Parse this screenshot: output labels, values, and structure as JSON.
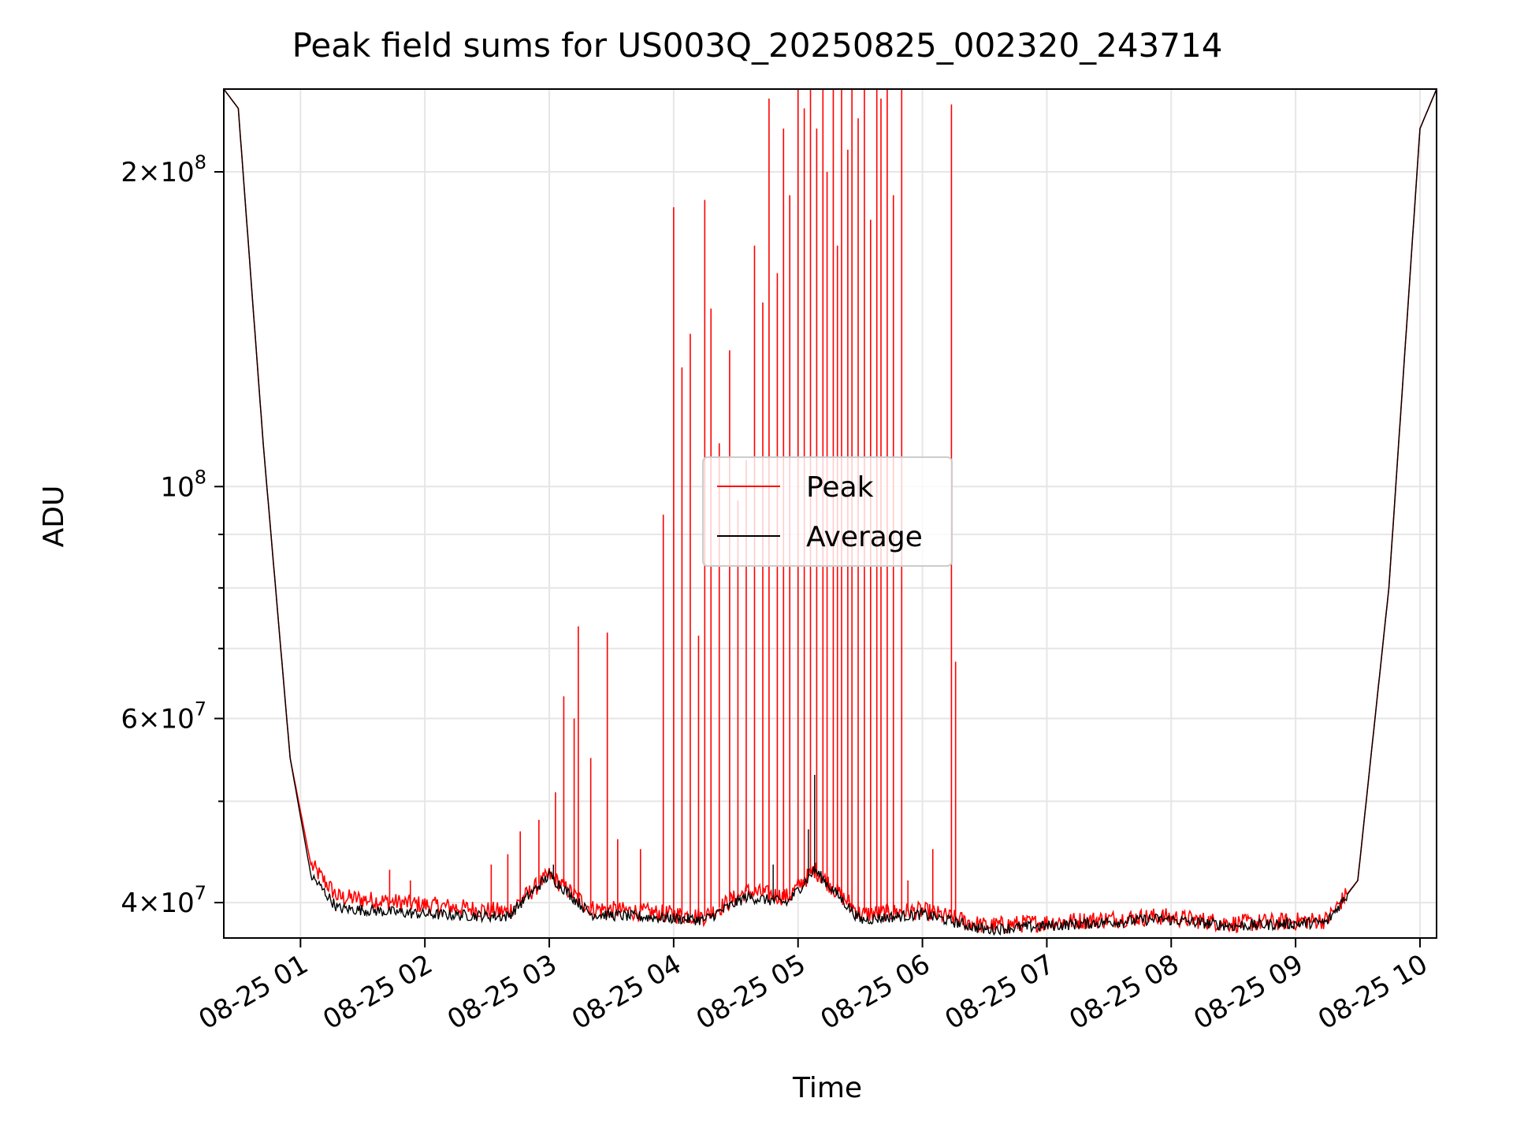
{
  "chart_data": {
    "type": "line",
    "title": "Peak field sums for US003Q_20250825_002320_243714",
    "xlabel": "Time",
    "ylabel": "ADU",
    "x_range": [
      "2025-08-25 00:23",
      "2025-08-25 10:08"
    ],
    "y_range": [
      37000000,
      240000000
    ],
    "y_scale": "log",
    "x_ticks": [
      {
        "label": "08-25 01",
        "value": "2025-08-25 01:00"
      },
      {
        "label": "08-25 02",
        "value": "2025-08-25 02:00"
      },
      {
        "label": "08-25 03",
        "value": "2025-08-25 03:00"
      },
      {
        "label": "08-25 04",
        "value": "2025-08-25 04:00"
      },
      {
        "label": "08-25 05",
        "value": "2025-08-25 05:00"
      },
      {
        "label": "08-25 06",
        "value": "2025-08-25 06:00"
      },
      {
        "label": "08-25 07",
        "value": "2025-08-25 07:00"
      },
      {
        "label": "08-25 08",
        "value": "2025-08-25 08:00"
      },
      {
        "label": "08-25 09",
        "value": "2025-08-25 09:00"
      },
      {
        "label": "08-25 10",
        "value": "2025-08-25 10:00"
      }
    ],
    "y_ticks": [
      {
        "value": 40000000,
        "mantissa": "4",
        "exponent": "7"
      },
      {
        "value": 60000000,
        "mantissa": "6",
        "exponent": "7"
      },
      {
        "value": 100000000,
        "mantissa": "",
        "exponent": "8"
      },
      {
        "value": 200000000,
        "mantissa": "2",
        "exponent": "8"
      }
    ],
    "y_minor_ticks": [
      50000000,
      70000000,
      80000000,
      90000000
    ],
    "tick_base": "10",
    "tick_times": "×",
    "grid": true,
    "legend_position": "center",
    "series": [
      {
        "name": "Peak",
        "color": "#ff0000",
        "baseline": [
          [
            "2025-08-25 00:23",
            240000000
          ],
          [
            "2025-08-25 00:30",
            230000000
          ],
          [
            "2025-08-25 00:42",
            110000000
          ],
          [
            "2025-08-25 00:55",
            55000000
          ],
          [
            "2025-08-25 01:05",
            43500000
          ],
          [
            "2025-08-25 01:18",
            40500000
          ],
          [
            "2025-08-25 02:00",
            39800000
          ],
          [
            "2025-08-25 02:40",
            39200000
          ],
          [
            "2025-08-25 03:00",
            42500000
          ],
          [
            "2025-08-25 03:20",
            39500000
          ],
          [
            "2025-08-25 04:15",
            38800000
          ],
          [
            "2025-08-25 04:35",
            41000000
          ],
          [
            "2025-08-25 04:55",
            40500000
          ],
          [
            "2025-08-25 05:08",
            43000000
          ],
          [
            "2025-08-25 05:30",
            39000000
          ],
          [
            "2025-08-25 06:00",
            39300000
          ],
          [
            "2025-08-25 06:30",
            38000000
          ],
          [
            "2025-08-25 07:00",
            38300000
          ],
          [
            "2025-08-25 07:55",
            38800000
          ],
          [
            "2025-08-25 08:30",
            38200000
          ],
          [
            "2025-08-25 09:15",
            38500000
          ],
          [
            "2025-08-25 09:30",
            42000000
          ],
          [
            "2025-08-25 09:45",
            80000000
          ],
          [
            "2025-08-25 10:00",
            220000000
          ],
          [
            "2025-08-25 10:08",
            240000000
          ]
        ],
        "spikes": [
          [
            "2025-08-25 01:43",
            43000000
          ],
          [
            "2025-08-25 01:53",
            42000000
          ],
          [
            "2025-08-25 02:32",
            43500000
          ],
          [
            "2025-08-25 02:40",
            44500000
          ],
          [
            "2025-08-25 02:46",
            46800000
          ],
          [
            "2025-08-25 02:55",
            48000000
          ],
          [
            "2025-08-25 03:03",
            51000000
          ],
          [
            "2025-08-25 03:07",
            63000000
          ],
          [
            "2025-08-25 03:12",
            60000000
          ],
          [
            "2025-08-25 03:14",
            73500000
          ],
          [
            "2025-08-25 03:20",
            55000000
          ],
          [
            "2025-08-25 03:28",
            72500000
          ],
          [
            "2025-08-25 03:33",
            46000000
          ],
          [
            "2025-08-25 03:44",
            45000000
          ],
          [
            "2025-08-25 03:55",
            94000000
          ],
          [
            "2025-08-25 04:00",
            185000000
          ],
          [
            "2025-08-25 04:04",
            130000000
          ],
          [
            "2025-08-25 04:08",
            140000000
          ],
          [
            "2025-08-25 04:12",
            72000000
          ],
          [
            "2025-08-25 04:15",
            188000000
          ],
          [
            "2025-08-25 04:18",
            148000000
          ],
          [
            "2025-08-25 04:22",
            110000000
          ],
          [
            "2025-08-25 04:27",
            135000000
          ],
          [
            "2025-08-25 04:31",
            97000000
          ],
          [
            "2025-08-25 04:35",
            106000000
          ],
          [
            "2025-08-25 04:39",
            170000000
          ],
          [
            "2025-08-25 04:43",
            150000000
          ],
          [
            "2025-08-25 04:46",
            235000000
          ],
          [
            "2025-08-25 04:50",
            160000000
          ],
          [
            "2025-08-25 04:53",
            220000000
          ],
          [
            "2025-08-25 04:56",
            190000000
          ],
          [
            "2025-08-25 05:00",
            240000000
          ],
          [
            "2025-08-25 05:03",
            230000000
          ],
          [
            "2025-08-25 05:06",
            240000000
          ],
          [
            "2025-08-25 05:09",
            220000000
          ],
          [
            "2025-08-25 05:12",
            240000000
          ],
          [
            "2025-08-25 05:14",
            200000000
          ],
          [
            "2025-08-25 05:17",
            240000000
          ],
          [
            "2025-08-25 05:19",
            170000000
          ],
          [
            "2025-08-25 05:21",
            240000000
          ],
          [
            "2025-08-25 05:24",
            210000000
          ],
          [
            "2025-08-25 05:26",
            240000000
          ],
          [
            "2025-08-25 05:29",
            225000000
          ],
          [
            "2025-08-25 05:32",
            240000000
          ],
          [
            "2025-08-25 05:35",
            180000000
          ],
          [
            "2025-08-25 05:38",
            240000000
          ],
          [
            "2025-08-25 05:40",
            235000000
          ],
          [
            "2025-08-25 05:43",
            240000000
          ],
          [
            "2025-08-25 05:46",
            190000000
          ],
          [
            "2025-08-25 05:50",
            240000000
          ],
          [
            "2025-08-25 05:53",
            42000000
          ],
          [
            "2025-08-25 06:05",
            45000000
          ],
          [
            "2025-08-25 06:14",
            232000000
          ],
          [
            "2025-08-25 06:16",
            68000000
          ]
        ]
      },
      {
        "name": "Average",
        "color": "#000000",
        "points": [
          [
            "2025-08-25 00:23",
            240000000
          ],
          [
            "2025-08-25 00:30",
            230000000
          ],
          [
            "2025-08-25 00:42",
            110000000
          ],
          [
            "2025-08-25 00:55",
            55000000
          ],
          [
            "2025-08-25 01:05",
            42500000
          ],
          [
            "2025-08-25 01:18",
            39500000
          ],
          [
            "2025-08-25 02:00",
            39000000
          ],
          [
            "2025-08-25 02:40",
            38800000
          ],
          [
            "2025-08-25 03:00",
            42500000
          ],
          [
            "2025-08-25 03:20",
            39000000
          ],
          [
            "2025-08-25 04:15",
            38500000
          ],
          [
            "2025-08-25 04:35",
            40500000
          ],
          [
            "2025-08-25 04:55",
            40000000
          ],
          [
            "2025-08-25 05:08",
            43000000
          ],
          [
            "2025-08-25 05:30",
            38500000
          ],
          [
            "2025-08-25 06:00",
            39000000
          ],
          [
            "2025-08-25 06:30",
            37700000
          ],
          [
            "2025-08-25 07:00",
            38000000
          ],
          [
            "2025-08-25 07:55",
            38600000
          ],
          [
            "2025-08-25 08:30",
            38000000
          ],
          [
            "2025-08-25 09:15",
            38300000
          ],
          [
            "2025-08-25 09:30",
            42000000
          ],
          [
            "2025-08-25 09:45",
            80000000
          ],
          [
            "2025-08-25 10:00",
            220000000
          ],
          [
            "2025-08-25 10:08",
            240000000
          ]
        ],
        "peaks": [
          [
            "2025-08-25 05:08",
            53000000
          ],
          [
            "2025-08-25 05:05",
            47000000
          ],
          [
            "2025-08-25 04:48",
            43500000
          ],
          [
            "2025-08-25 03:02",
            43500000
          ]
        ]
      }
    ]
  }
}
